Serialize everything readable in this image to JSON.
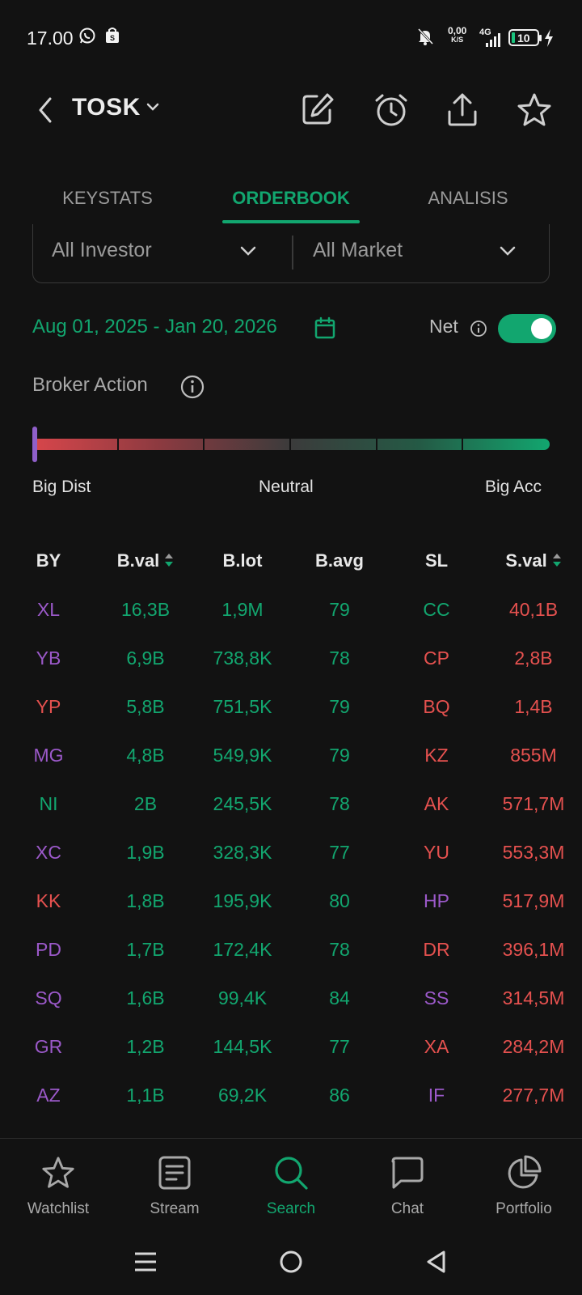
{
  "status_bar": {
    "time": "17.00",
    "speed_value": "0,00",
    "speed_unit": "K/S",
    "network": "4G",
    "battery": "10"
  },
  "header": {
    "ticker": "TOSK",
    "icons": [
      "back-icon",
      "chevron-down-icon",
      "edit-icon",
      "alarm-icon",
      "share-icon",
      "star-icon"
    ]
  },
  "tabs": [
    {
      "label": "KEYSTATS",
      "active": false
    },
    {
      "label": "ORDERBOOK",
      "active": true
    },
    {
      "label": "ANALISIS",
      "active": false
    }
  ],
  "filters": {
    "investor": "All Investor",
    "market": "All Market"
  },
  "date_range": "Aug 01, 2025 - Jan 20, 2026",
  "net": {
    "label": "Net",
    "enabled": true
  },
  "broker_action": {
    "title": "Broker Action",
    "level": 0.0,
    "labels": {
      "left": "Big Dist",
      "center": "Neutral",
      "right": "Big Acc"
    }
  },
  "table": {
    "headers": {
      "by": "BY",
      "bval": "B.val",
      "blot": "B.lot",
      "bavg": "B.avg",
      "sl": "SL",
      "sval": "S.val"
    },
    "rows": [
      {
        "by": "XL",
        "by_color": "purple",
        "bval": "16,3B",
        "blot": "1,9M",
        "bavg": "79",
        "sl": "CC",
        "sl_color": "green",
        "sval": "40,1B"
      },
      {
        "by": "YB",
        "by_color": "purple",
        "bval": "6,9B",
        "blot": "738,8K",
        "bavg": "78",
        "sl": "CP",
        "sl_color": "red",
        "sval": "2,8B"
      },
      {
        "by": "YP",
        "by_color": "red",
        "bval": "5,8B",
        "blot": "751,5K",
        "bavg": "79",
        "sl": "BQ",
        "sl_color": "red",
        "sval": "1,4B"
      },
      {
        "by": "MG",
        "by_color": "purple",
        "bval": "4,8B",
        "blot": "549,9K",
        "bavg": "79",
        "sl": "KZ",
        "sl_color": "red",
        "sval": "855M"
      },
      {
        "by": "NI",
        "by_color": "green",
        "bval": "2B",
        "blot": "245,5K",
        "bavg": "78",
        "sl": "AK",
        "sl_color": "red",
        "sval": "571,7M"
      },
      {
        "by": "XC",
        "by_color": "purple",
        "bval": "1,9B",
        "blot": "328,3K",
        "bavg": "77",
        "sl": "YU",
        "sl_color": "red",
        "sval": "553,3M"
      },
      {
        "by": "KK",
        "by_color": "red",
        "bval": "1,8B",
        "blot": "195,9K",
        "bavg": "80",
        "sl": "HP",
        "sl_color": "purple",
        "sval": "517,9M"
      },
      {
        "by": "PD",
        "by_color": "purple",
        "bval": "1,7B",
        "blot": "172,4K",
        "bavg": "78",
        "sl": "DR",
        "sl_color": "red",
        "sval": "396,1M"
      },
      {
        "by": "SQ",
        "by_color": "purple",
        "bval": "1,6B",
        "blot": "99,4K",
        "bavg": "84",
        "sl": "SS",
        "sl_color": "purple",
        "sval": "314,5M"
      },
      {
        "by": "GR",
        "by_color": "purple",
        "bval": "1,2B",
        "blot": "144,5K",
        "bavg": "77",
        "sl": "XA",
        "sl_color": "red",
        "sval": "284,2M"
      },
      {
        "by": "AZ",
        "by_color": "purple",
        "bval": "1,1B",
        "blot": "69,2K",
        "bavg": "86",
        "sl": "IF",
        "sl_color": "purple",
        "sval": "277,7M"
      }
    ]
  },
  "bottom_nav": [
    {
      "label": "Watchlist",
      "icon": "star-icon",
      "active": false
    },
    {
      "label": "Stream",
      "icon": "stream-icon",
      "active": false
    },
    {
      "label": "Search",
      "icon": "search-icon",
      "active": true
    },
    {
      "label": "Chat",
      "icon": "chat-icon",
      "active": false
    },
    {
      "label": "Portfolio",
      "icon": "pie-chart-icon",
      "active": false
    }
  ],
  "colors": {
    "accent": "#12a66f",
    "buy": "#12a66f",
    "sell": "#e5514f",
    "foreign": "#9b59c9",
    "background": "#121212"
  }
}
